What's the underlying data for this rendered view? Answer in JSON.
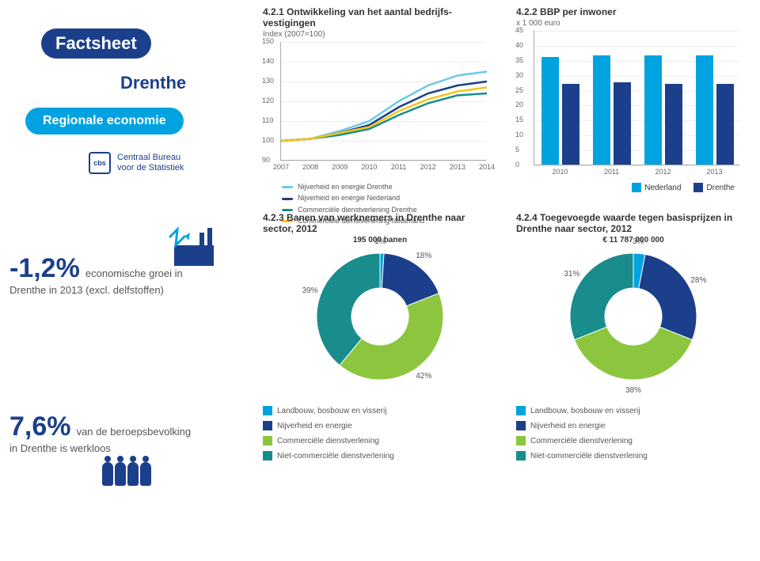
{
  "sidebar": {
    "factsheet": "Factsheet",
    "region": "Drenthe",
    "subtitle": "Regionale economie",
    "cbs1": "Centraal Bureau",
    "cbs2": "voor de Statistiek"
  },
  "colors": {
    "navy": "#1b3f8b",
    "cyan": "#00a3e0",
    "lightcyan": "#6bc8e8",
    "teal": "#198c8c",
    "green": "#8cc63f",
    "yellow": "#f5c518",
    "grid": "#eeeeee",
    "axis": "#aaaaaa"
  },
  "chart421": {
    "title": "4.2.1  Ontwikkeling van het aantal bedrijfs-\n          vestigingen",
    "subtitle": "Index (2007=100)",
    "type": "line",
    "years": [
      "2007",
      "2008",
      "2009",
      "2010",
      "2011",
      "2012",
      "2013",
      "2014"
    ],
    "ymin": 90,
    "ymax": 150,
    "ystep": 10,
    "series": [
      {
        "label": "Nijverheid en energie Drenthe",
        "color": "#6bc8e8",
        "values": [
          100,
          101,
          105,
          110,
          120,
          128,
          133,
          135
        ]
      },
      {
        "label": "Nijverheid en energie Nederland",
        "color": "#1b3f8b",
        "values": [
          100,
          101,
          104,
          108,
          117,
          124,
          128,
          130
        ]
      },
      {
        "label": "Commerciële dienstverlening Drenthe",
        "color": "#198c8c",
        "values": [
          100,
          101,
          103,
          106,
          113,
          119,
          123,
          124
        ]
      },
      {
        "label": "Commerciële dienstverlening Nederland",
        "color": "#f5c518",
        "values": [
          100,
          101,
          104,
          107,
          115,
          121,
          125,
          127
        ]
      }
    ]
  },
  "chart422": {
    "title": "4.2.2  BBP per inwoner",
    "subtitle": "x 1 000 euro",
    "type": "bar",
    "years": [
      "2010",
      "2011",
      "2012",
      "2013"
    ],
    "ymin": 0,
    "ymax": 45,
    "ystep": 5,
    "series": [
      {
        "label": "Nederland",
        "color": "#00a3e0",
        "values": [
          36,
          36.5,
          36.5,
          36.5
        ]
      },
      {
        "label": "Drenthe",
        "color": "#1b3f8b",
        "values": [
          27,
          27.5,
          27,
          27
        ]
      }
    ]
  },
  "stat1": {
    "value": "-1,2%",
    "line1": "economische groei in",
    "line2": "Drenthe in 2013 (excl. delfstoffen)"
  },
  "stat2": {
    "value": "7,6%",
    "line1": "van de beroepsbevolking",
    "line2": "in Drenthe is werkloos"
  },
  "chart423": {
    "title": "4.2.3  Banen van werknemers in Drenthe naar\n          sector, 2012",
    "centerlabel": "195 000 banen",
    "type": "pie",
    "slices": [
      {
        "label": "Landbouw, bosbouw en visserij",
        "color": "#00a3e0",
        "value": 1
      },
      {
        "label": "Nijverheid en energie",
        "color": "#1b3f8b",
        "value": 18
      },
      {
        "label": "Commerciële dienstverlening",
        "color": "#8cc63f",
        "value": 42
      },
      {
        "label": "Niet-commerciële dienstverlening",
        "color": "#198c8c",
        "value": 39
      }
    ]
  },
  "chart424": {
    "title": "4.2.4  Toegevoegde waarde tegen basisprijzen in\n          Drenthe naar sector, 2012",
    "centerlabel": "€ 11 787 000 000",
    "type": "pie",
    "slices": [
      {
        "label": "Landbouw, bosbouw en visserij",
        "color": "#00a3e0",
        "value": 3
      },
      {
        "label": "Nijverheid en energie",
        "color": "#1b3f8b",
        "value": 28
      },
      {
        "label": "Commerciële dienstverlening",
        "color": "#8cc63f",
        "value": 38
      },
      {
        "label": "Niet-commerciële dienstverlening",
        "color": "#198c8c",
        "value": 31
      }
    ]
  },
  "pielegend": [
    {
      "label": "Landbouw, bosbouw en visserij",
      "color": "#00a3e0"
    },
    {
      "label": "Nijverheid en energie",
      "color": "#1b3f8b"
    },
    {
      "label": "Commerciële dienstverlening",
      "color": "#8cc63f"
    },
    {
      "label": "Niet-commerciële dienstverlening",
      "color": "#198c8c"
    }
  ]
}
